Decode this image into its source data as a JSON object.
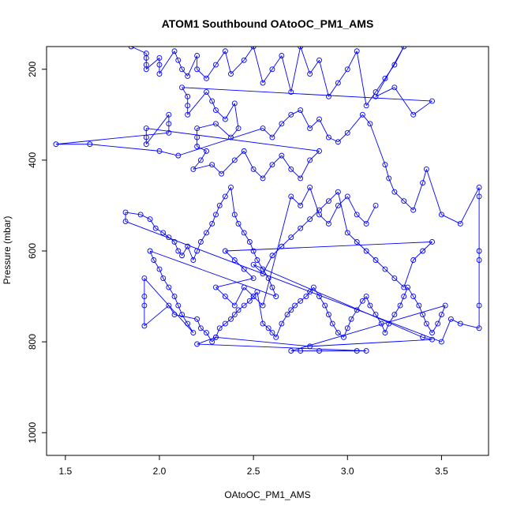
{
  "chart_data": {
    "type": "scatter",
    "title": "ATOM1 Southbound OAtoOC_PM1_AMS",
    "xlabel": "OAtoOC_PM1_AMS",
    "ylabel": "Pressure (mbar)",
    "xlim": [
      1.4,
      3.75
    ],
    "ylim": [
      1050,
      150
    ],
    "y_reversed": true,
    "x_ticks": [
      1.5,
      2.0,
      2.5,
      3.0,
      3.5
    ],
    "x_tick_labels": [
      "1.5",
      "2.0",
      "2.5",
      "3.0",
      "3.5"
    ],
    "y_ticks": [
      200,
      400,
      600,
      800,
      1000
    ],
    "y_tick_labels": [
      "200",
      "400",
      "600",
      "800",
      "1000"
    ],
    "grid": false,
    "series_color": "#0000ff",
    "marker": "open-circle",
    "connected": true,
    "points": [
      [
        1.85,
        150
      ],
      [
        1.93,
        165
      ],
      [
        1.93,
        175
      ],
      [
        1.93,
        190
      ],
      [
        1.93,
        200
      ],
      [
        2.0,
        175
      ],
      [
        2.0,
        190
      ],
      [
        2.0,
        210
      ],
      [
        2.08,
        160
      ],
      [
        2.1,
        180
      ],
      [
        2.12,
        200
      ],
      [
        2.15,
        215
      ],
      [
        2.2,
        170
      ],
      [
        2.2,
        200
      ],
      [
        2.25,
        220
      ],
      [
        2.3,
        190
      ],
      [
        2.35,
        160
      ],
      [
        2.38,
        210
      ],
      [
        2.45,
        180
      ],
      [
        2.5,
        150
      ],
      [
        2.55,
        230
      ],
      [
        2.6,
        200
      ],
      [
        2.65,
        170
      ],
      [
        2.7,
        250
      ],
      [
        2.75,
        150
      ],
      [
        2.8,
        210
      ],
      [
        2.85,
        180
      ],
      [
        2.9,
        260
      ],
      [
        2.95,
        230
      ],
      [
        3.0,
        200
      ],
      [
        3.05,
        160
      ],
      [
        3.1,
        280
      ],
      [
        3.15,
        250
      ],
      [
        3.2,
        220
      ],
      [
        3.25,
        190
      ],
      [
        3.3,
        150
      ],
      [
        3.15,
        260
      ],
      [
        3.25,
        240
      ],
      [
        3.35,
        300
      ],
      [
        3.45,
        270
      ],
      [
        2.12,
        240
      ],
      [
        2.15,
        260
      ],
      [
        2.15,
        280
      ],
      [
        2.15,
        300
      ],
      [
        2.25,
        250
      ],
      [
        2.28,
        270
      ],
      [
        2.3,
        290
      ],
      [
        2.35,
        310
      ],
      [
        2.4,
        275
      ],
      [
        2.42,
        330
      ],
      [
        2.38,
        350
      ],
      [
        2.3,
        320
      ],
      [
        2.2,
        330
      ],
      [
        2.2,
        350
      ],
      [
        2.2,
        370
      ],
      [
        2.25,
        380
      ],
      [
        2.22,
        400
      ],
      [
        2.18,
        420
      ],
      [
        2.28,
        410
      ],
      [
        2.33,
        430
      ],
      [
        2.4,
        400
      ],
      [
        2.45,
        380
      ],
      [
        2.5,
        420
      ],
      [
        2.55,
        440
      ],
      [
        2.6,
        410
      ],
      [
        2.65,
        390
      ],
      [
        2.7,
        420
      ],
      [
        2.75,
        440
      ],
      [
        2.8,
        400
      ],
      [
        2.85,
        380
      ],
      [
        1.93,
        330
      ],
      [
        1.93,
        350
      ],
      [
        1.93,
        365
      ],
      [
        2.05,
        300
      ],
      [
        2.05,
        320
      ],
      [
        2.05,
        340
      ],
      [
        1.45,
        365
      ],
      [
        1.63,
        365
      ],
      [
        2.0,
        380
      ],
      [
        2.1,
        390
      ],
      [
        2.55,
        330
      ],
      [
        2.6,
        350
      ],
      [
        2.65,
        320
      ],
      [
        2.7,
        300
      ],
      [
        2.75,
        290
      ],
      [
        2.8,
        330
      ],
      [
        2.85,
        310
      ],
      [
        2.9,
        350
      ],
      [
        2.95,
        360
      ],
      [
        3.0,
        340
      ],
      [
        3.08,
        300
      ],
      [
        3.12,
        320
      ],
      [
        3.2,
        410
      ],
      [
        3.22,
        440
      ],
      [
        3.25,
        470
      ],
      [
        3.3,
        490
      ],
      [
        3.35,
        510
      ],
      [
        3.4,
        450
      ],
      [
        3.42,
        420
      ],
      [
        3.5,
        520
      ],
      [
        3.6,
        540
      ],
      [
        3.7,
        460
      ],
      [
        3.7,
        480
      ],
      [
        3.7,
        600
      ],
      [
        3.7,
        620
      ],
      [
        3.7,
        720
      ],
      [
        3.7,
        770
      ],
      [
        3.6,
        760
      ],
      [
        3.55,
        750
      ],
      [
        3.5,
        800
      ],
      [
        1.82,
        535
      ],
      [
        1.82,
        515
      ],
      [
        1.9,
        520
      ],
      [
        1.95,
        530
      ],
      [
        1.98,
        550
      ],
      [
        2.02,
        560
      ],
      [
        2.05,
        570
      ],
      [
        2.08,
        580
      ],
      [
        2.1,
        600
      ],
      [
        2.12,
        610
      ],
      [
        2.15,
        590
      ],
      [
        2.18,
        620
      ],
      [
        2.2,
        600
      ],
      [
        2.22,
        580
      ],
      [
        2.25,
        560
      ],
      [
        2.28,
        540
      ],
      [
        2.3,
        520
      ],
      [
        2.32,
        500
      ],
      [
        2.35,
        480
      ],
      [
        2.38,
        460
      ],
      [
        2.4,
        520
      ],
      [
        2.42,
        540
      ],
      [
        2.45,
        560
      ],
      [
        2.48,
        580
      ],
      [
        2.5,
        600
      ],
      [
        2.52,
        620
      ],
      [
        2.55,
        640
      ],
      [
        2.58,
        660
      ],
      [
        2.6,
        680
      ],
      [
        2.62,
        700
      ],
      [
        1.95,
        600
      ],
      [
        1.97,
        620
      ],
      [
        2.0,
        640
      ],
      [
        2.02,
        660
      ],
      [
        2.05,
        680
      ],
      [
        2.08,
        700
      ],
      [
        2.1,
        720
      ],
      [
        2.12,
        740
      ],
      [
        2.15,
        760
      ],
      [
        2.18,
        780
      ],
      [
        1.92,
        660
      ],
      [
        1.92,
        700
      ],
      [
        1.92,
        720
      ],
      [
        1.92,
        765
      ],
      [
        2.05,
        720
      ],
      [
        2.08,
        740
      ],
      [
        2.2,
        750
      ],
      [
        2.22,
        770
      ],
      [
        2.25,
        780
      ],
      [
        2.28,
        800
      ],
      [
        2.3,
        790
      ],
      [
        2.32,
        770
      ],
      [
        2.35,
        760
      ],
      [
        2.38,
        750
      ],
      [
        2.4,
        740
      ],
      [
        2.42,
        730
      ],
      [
        2.45,
        720
      ],
      [
        2.48,
        710
      ],
      [
        2.5,
        700
      ],
      [
        2.52,
        690
      ],
      [
        2.55,
        760
      ],
      [
        2.58,
        770
      ],
      [
        2.6,
        780
      ],
      [
        2.62,
        790
      ],
      [
        2.65,
        760
      ],
      [
        2.68,
        740
      ],
      [
        2.7,
        730
      ],
      [
        2.72,
        720
      ],
      [
        2.75,
        710
      ],
      [
        2.78,
        700
      ],
      [
        2.8,
        690
      ],
      [
        2.82,
        680
      ],
      [
        2.85,
        700
      ],
      [
        2.88,
        720
      ],
      [
        2.9,
        740
      ],
      [
        2.92,
        760
      ],
      [
        2.95,
        780
      ],
      [
        2.98,
        790
      ],
      [
        3.0,
        770
      ],
      [
        3.02,
        750
      ],
      [
        3.05,
        730
      ],
      [
        3.08,
        710
      ],
      [
        3.1,
        700
      ],
      [
        3.12,
        720
      ],
      [
        3.15,
        740
      ],
      [
        3.18,
        760
      ],
      [
        3.2,
        780
      ],
      [
        3.22,
        760
      ],
      [
        3.25,
        740
      ],
      [
        3.28,
        720
      ],
      [
        3.3,
        700
      ],
      [
        3.32,
        680
      ],
      [
        3.35,
        700
      ],
      [
        3.38,
        720
      ],
      [
        3.4,
        740
      ],
      [
        3.42,
        760
      ],
      [
        3.45,
        780
      ],
      [
        3.48,
        760
      ],
      [
        3.5,
        740
      ],
      [
        3.52,
        720
      ],
      [
        2.7,
        820
      ],
      [
        2.75,
        820
      ],
      [
        2.85,
        820
      ],
      [
        3.05,
        820
      ],
      [
        3.1,
        820
      ],
      [
        2.2,
        805
      ],
      [
        2.3,
        790
      ],
      [
        2.8,
        810
      ],
      [
        3.45,
        795
      ],
      [
        3.4,
        790
      ],
      [
        2.5,
        630
      ],
      [
        2.55,
        650
      ],
      [
        2.6,
        610
      ],
      [
        2.65,
        590
      ],
      [
        2.7,
        570
      ],
      [
        2.75,
        550
      ],
      [
        2.8,
        530
      ],
      [
        2.85,
        510
      ],
      [
        2.9,
        490
      ],
      [
        2.95,
        470
      ],
      [
        3.0,
        560
      ],
      [
        3.05,
        580
      ],
      [
        3.1,
        600
      ],
      [
        3.15,
        620
      ],
      [
        3.2,
        640
      ],
      [
        3.25,
        660
      ],
      [
        3.3,
        680
      ],
      [
        3.35,
        620
      ],
      [
        3.4,
        600
      ],
      [
        3.45,
        580
      ],
      [
        2.35,
        600
      ],
      [
        2.4,
        620
      ],
      [
        2.45,
        640
      ],
      [
        2.5,
        660
      ],
      [
        2.3,
        680
      ],
      [
        2.35,
        700
      ],
      [
        2.4,
        720
      ],
      [
        2.45,
        680
      ],
      [
        2.5,
        700
      ],
      [
        2.55,
        720
      ],
      [
        2.7,
        480
      ],
      [
        2.75,
        500
      ],
      [
        2.8,
        460
      ],
      [
        2.85,
        520
      ],
      [
        2.9,
        540
      ],
      [
        2.95,
        500
      ],
      [
        3.0,
        480
      ],
      [
        3.05,
        520
      ],
      [
        3.1,
        540
      ],
      [
        3.15,
        500
      ]
    ]
  }
}
